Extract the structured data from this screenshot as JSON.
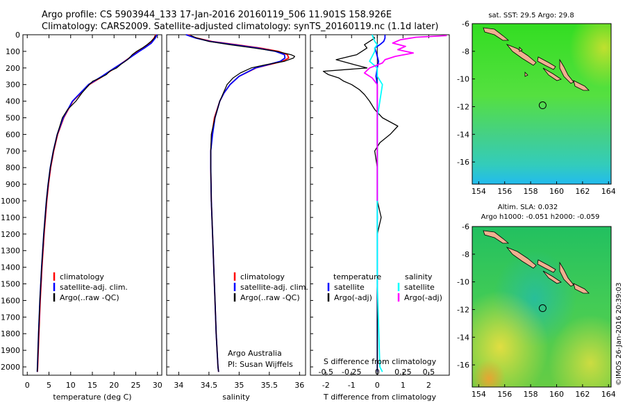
{
  "header": {
    "line1": "Argo profile: CS 5903944_133 17-Jan-2016 20160119_506 11.901S 158.926E",
    "line2": "Climatology: CARS2009. Satellite-adjusted climatology: synTS_20160119.nc (1.1d later)"
  },
  "colors": {
    "climatology": "#ff0000",
    "satellite": "#0000ff",
    "argo": "#000000",
    "sat_sal": "#00ffff",
    "argo_sal": "#ff00ff"
  },
  "chart_data": [
    {
      "type": "line",
      "id": "temperature",
      "xlabel": "temperature (deg C)",
      "ylim": [
        2050,
        0
      ],
      "xlim": [
        -1,
        31
      ],
      "xticks": [
        "0",
        "5",
        "10",
        "15",
        "20",
        "25",
        "30"
      ],
      "xtick_values": [
        0,
        5,
        10,
        15,
        20,
        25,
        30
      ],
      "yticks": [
        "0",
        "100",
        "200",
        "300",
        "400",
        "500",
        "600",
        "700",
        "800",
        "900",
        "1000",
        "1100",
        "1200",
        "1300",
        "1400",
        "1500",
        "1600",
        "1700",
        "1800",
        "1900",
        "2000"
      ],
      "ytick_values": [
        0,
        100,
        200,
        300,
        400,
        500,
        600,
        700,
        800,
        900,
        1000,
        1100,
        1200,
        1300,
        1400,
        1500,
        1600,
        1700,
        1800,
        1900,
        2000
      ],
      "legend": [
        "climatology",
        "satellite-adj. clim.",
        "Argo(..raw -QC)"
      ],
      "series": [
        {
          "name": "climatology",
          "depth": [
            0,
            20,
            50,
            80,
            100,
            130,
            160,
            200,
            250,
            300,
            400,
            500,
            600,
            700,
            800,
            900,
            1000,
            1200,
            1400,
            1600,
            1800,
            2000,
            2030
          ],
          "values": [
            29.6,
            29.2,
            28.3,
            26.8,
            25.6,
            24.0,
            22.4,
            20.2,
            17.4,
            14.3,
            10.5,
            8.4,
            7.0,
            6.1,
            5.4,
            4.9,
            4.5,
            3.9,
            3.4,
            3.0,
            2.7,
            2.4,
            2.35
          ]
        },
        {
          "name": "satellite-adj. clim.",
          "depth": [
            0,
            20,
            50,
            80,
            100,
            130,
            160,
            200,
            250,
            300,
            400,
            500,
            600,
            700,
            800,
            900,
            1000,
            1200,
            1400,
            1600,
            1800,
            2000,
            2030
          ],
          "values": [
            29.9,
            29.5,
            28.6,
            27.0,
            25.8,
            24.1,
            22.5,
            20.1,
            17.2,
            14.1,
            10.4,
            8.3,
            6.9,
            6.0,
            5.3,
            4.8,
            4.4,
            3.8,
            3.3,
            2.9,
            2.6,
            2.35,
            2.3
          ]
        },
        {
          "name": "Argo(..raw -QC)",
          "depth": [
            5,
            20,
            40,
            60,
            80,
            100,
            120,
            150,
            180,
            200,
            220,
            240,
            260,
            280,
            300,
            350,
            400,
            450,
            500,
            600,
            700,
            800,
            900,
            1000,
            1200,
            1400,
            1600,
            1800,
            2000,
            2030
          ],
          "values": [
            29.5,
            29.3,
            28.5,
            27.6,
            26.5,
            25.2,
            24.2,
            23.1,
            21.5,
            20.6,
            19.0,
            18.2,
            16.8,
            15.1,
            14.3,
            12.6,
            11.2,
            9.3,
            8.1,
            6.9,
            6.0,
            5.3,
            4.8,
            4.4,
            3.8,
            3.3,
            2.9,
            2.6,
            2.35,
            2.3
          ]
        }
      ]
    },
    {
      "type": "line",
      "id": "salinity",
      "xlabel": "salinity",
      "ylim": [
        2050,
        0
      ],
      "xlim": [
        33.8,
        36.1
      ],
      "xticks": [
        "34",
        "34.5",
        "35",
        "35.5",
        "36"
      ],
      "xtick_values": [
        34,
        34.5,
        35,
        35.5,
        36
      ],
      "legend": [
        "climatology",
        "satellite-adj. clim.",
        "Argo(..raw -QC)"
      ],
      "annotation": [
        "Argo Australia",
        "PI: Susan Wijffels"
      ],
      "series": [
        {
          "name": "climatology",
          "depth": [
            0,
            20,
            40,
            60,
            80,
            100,
            120,
            140,
            160,
            180,
            200,
            250,
            300,
            350,
            400,
            500,
            600,
            700,
            800,
            1000,
            1200,
            1400,
            1600,
            1800,
            2000,
            2030
          ],
          "values": [
            34.15,
            34.3,
            34.55,
            34.95,
            35.35,
            35.65,
            35.8,
            35.82,
            35.72,
            35.5,
            35.28,
            35.0,
            34.85,
            34.75,
            34.68,
            34.59,
            34.55,
            34.53,
            34.53,
            34.54,
            34.56,
            34.58,
            34.6,
            34.62,
            34.65,
            34.66
          ]
        },
        {
          "name": "satellite-adj. clim.",
          "depth": [
            0,
            20,
            40,
            60,
            80,
            100,
            120,
            140,
            160,
            180,
            200,
            250,
            300,
            350,
            400,
            500,
            600,
            700,
            800,
            1000,
            1200,
            1400,
            1600,
            1800,
            2000,
            2030
          ],
          "values": [
            34.12,
            34.28,
            34.52,
            34.9,
            35.3,
            35.6,
            35.75,
            35.76,
            35.68,
            35.48,
            35.27,
            35.0,
            34.85,
            34.75,
            34.68,
            34.6,
            34.56,
            34.53,
            34.53,
            34.54,
            34.56,
            34.58,
            34.6,
            34.62,
            34.65,
            34.66
          ]
        },
        {
          "name": "Argo(..raw -QC)",
          "depth": [
            5,
            20,
            40,
            60,
            80,
            100,
            120,
            130,
            140,
            160,
            180,
            200,
            230,
            260,
            300,
            350,
            400,
            500,
            600,
            700,
            800,
            1000,
            1200,
            1400,
            1600,
            1800,
            2000,
            2030
          ],
          "values": [
            34.2,
            34.3,
            34.5,
            34.85,
            35.25,
            35.62,
            35.86,
            35.92,
            35.9,
            35.75,
            35.45,
            35.2,
            35.02,
            34.9,
            34.8,
            34.74,
            34.68,
            34.6,
            34.54,
            34.53,
            34.53,
            34.54,
            34.56,
            34.58,
            34.6,
            34.62,
            34.65,
            34.66
          ]
        }
      ]
    },
    {
      "type": "line",
      "id": "difference",
      "xlabel": "T difference from climatology",
      "xlabel_top": "S difference from climatology",
      "ylim": [
        2050,
        0
      ],
      "xlim": [
        -2.6,
        2.8
      ],
      "xticks": [
        "-2",
        "-1",
        "0",
        "1",
        "2"
      ],
      "xtick_values": [
        -2,
        -1,
        0,
        1,
        2
      ],
      "xticks_top": [
        "-0.5",
        "-0.25",
        "0",
        "0.25",
        "0.5"
      ],
      "xtick_top_values": [
        -2,
        -1,
        0,
        1,
        2
      ],
      "legend_t_title": "temperature",
      "legend_s_title": "salinity",
      "legend_t": [
        "satellite",
        "Argo(-adj)"
      ],
      "legend_s": [
        "satellite",
        "Argo(-adj)"
      ],
      "series": [
        {
          "name": "T satellite",
          "depth": [
            0,
            20,
            40,
            60,
            80,
            100,
            130,
            160,
            200,
            250,
            300,
            400,
            500,
            600,
            800,
            1000,
            1500,
            2000,
            2030
          ],
          "values": [
            0.3,
            0.3,
            0.25,
            0.1,
            -0.1,
            -0.05,
            0.0,
            0.05,
            0.0,
            -0.05,
            0.0,
            0.0,
            0.0,
            0.0,
            0.0,
            0.0,
            0.0,
            0.0,
            0.0
          ]
        },
        {
          "name": "T Argo(-adj)",
          "depth": [
            5,
            20,
            40,
            60,
            80,
            100,
            120,
            150,
            180,
            200,
            220,
            240,
            260,
            280,
            300,
            330,
            360,
            400,
            450,
            500,
            550,
            600,
            650,
            700,
            800,
            900,
            1000,
            1100,
            1200,
            1500,
            2000,
            2030
          ],
          "values": [
            -0.2,
            -0.1,
            -0.3,
            -0.5,
            -0.4,
            -0.6,
            -0.8,
            -1.6,
            -0.9,
            -0.4,
            -2.1,
            -1.9,
            -1.5,
            -1.3,
            -1.0,
            -0.7,
            -0.5,
            -0.3,
            -0.1,
            0.2,
            0.8,
            0.5,
            0.1,
            -0.1,
            0.0,
            0.0,
            0.0,
            0.15,
            0.0,
            0.0,
            0.0,
            0.0
          ]
        },
        {
          "name": "S satellite",
          "depth": [
            0,
            20,
            40,
            60,
            80,
            100,
            130,
            160,
            200,
            250,
            300,
            400,
            500,
            600,
            800,
            1000,
            1500,
            2000,
            2030
          ],
          "values": [
            -0.2,
            -0.15,
            -0.1,
            0.0,
            -0.1,
            -0.1,
            -0.2,
            -0.3,
            0.0,
            0.0,
            0.2,
            0.1,
            0.0,
            0.0,
            0.0,
            0.0,
            0.0,
            0.1,
            0.2
          ]
        },
        {
          "name": "S Argo(-adj)",
          "depth": [
            5,
            15,
            30,
            50,
            70,
            90,
            110,
            130,
            150,
            170,
            200,
            230,
            260,
            300,
            350,
            400,
            500,
            600,
            800,
            1000
          ],
          "values": [
            2.7,
            1.5,
            0.9,
            0.6,
            1.1,
            0.8,
            1.4,
            0.7,
            0.3,
            0.2,
            -0.3,
            -0.5,
            -0.2,
            0.0,
            0.0,
            0.0,
            0.0,
            0.0,
            0.0,
            0.0
          ]
        }
      ]
    },
    {
      "type": "heatmap",
      "id": "sst-map",
      "title": "sat. SST: 29.5 Argo: 29.8",
      "xlim": [
        153.5,
        164.2
      ],
      "ylim": [
        -17.6,
        -6
      ],
      "xticks": [
        "154",
        "156",
        "158",
        "160",
        "162",
        "164"
      ],
      "xtick_values": [
        154,
        156,
        158,
        160,
        162,
        164
      ],
      "yticks": [
        "-6",
        "-8",
        "-10",
        "-12",
        "-14",
        "-16"
      ],
      "ytick_values": [
        -6,
        -8,
        -10,
        -12,
        -14,
        -16
      ],
      "marker": [
        158.926,
        -11.901
      ]
    },
    {
      "type": "heatmap",
      "id": "sla-map",
      "title": "Altim. SLA: 0.032",
      "subtitle": "Argo h1000: -0.051 h2000: -0.059",
      "xlim": [
        153.5,
        164.2
      ],
      "ylim": [
        -17.6,
        -6
      ],
      "xticks": [
        "154",
        "156",
        "158",
        "160",
        "162",
        "164"
      ],
      "xtick_values": [
        154,
        156,
        158,
        160,
        162,
        164
      ],
      "yticks": [
        "-6",
        "-8",
        "-10",
        "-12",
        "-14",
        "-16"
      ],
      "ytick_values": [
        -6,
        -8,
        -10,
        -12,
        -14,
        -16
      ],
      "marker": [
        158.926,
        -11.901
      ]
    }
  ],
  "footer": {
    "stamp": "©IMOS 26-Jan-2016 20:39:03"
  }
}
